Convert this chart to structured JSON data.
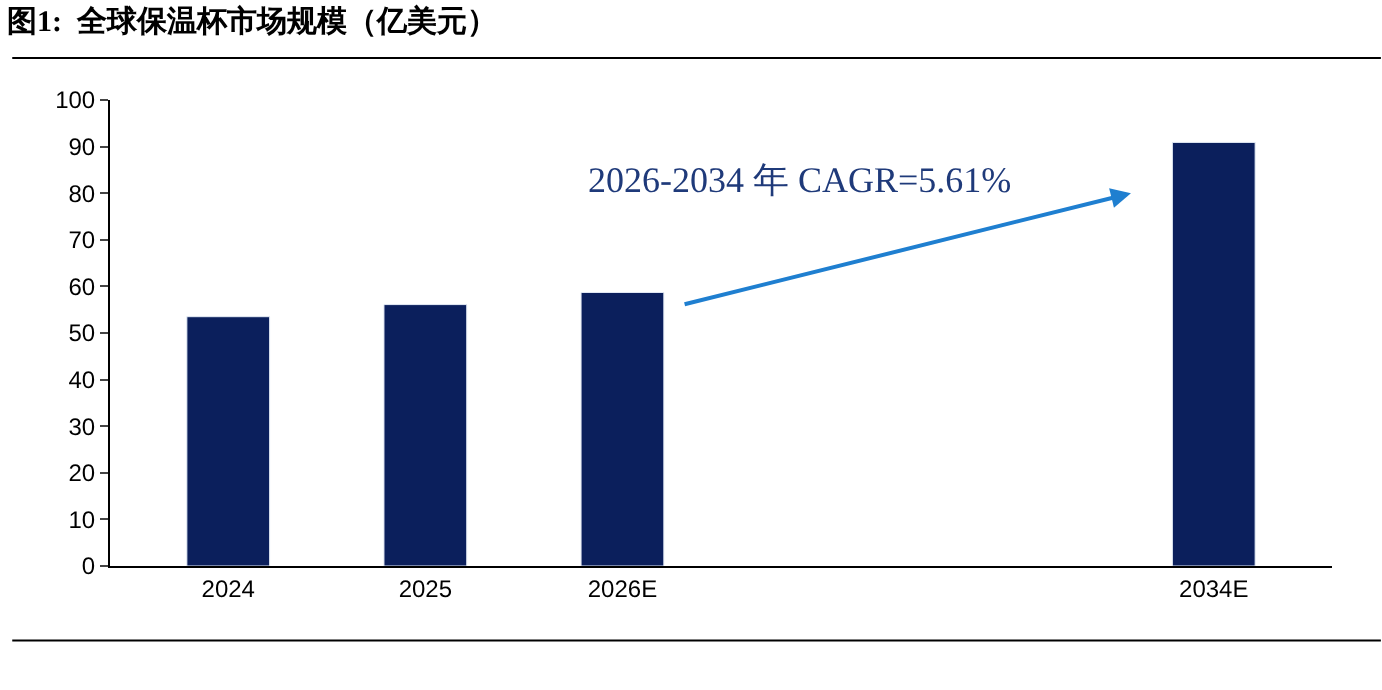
{
  "chart_data": {
    "type": "bar",
    "title": "图1:  全球保温杯市场规模（亿美元）",
    "categories": [
      "2024",
      "2025",
      "2026E",
      null,
      null,
      "2034E"
    ],
    "values": [
      53.5,
      56.1,
      58.7,
      null,
      null,
      90.9
    ],
    "color": "#0b1f5c",
    "ylim": [
      0,
      100
    ],
    "yticks": [
      0,
      10,
      20,
      30,
      40,
      50,
      60,
      70,
      80,
      90,
      100
    ],
    "legend": false,
    "annotations": [
      "2026-2034 年 CAGR=5.61%"
    ]
  }
}
